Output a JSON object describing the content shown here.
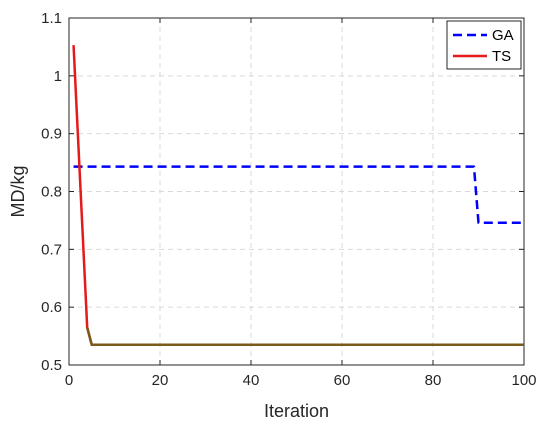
{
  "chart_data": {
    "type": "line",
    "xlabel": "Iteration",
    "ylabel": "MD/kg",
    "xlim": [
      0,
      100
    ],
    "ylim": [
      0.5,
      1.1
    ],
    "xticks": [
      0,
      20,
      40,
      60,
      80,
      100
    ],
    "yticks": [
      0.5,
      0.6,
      0.7,
      0.8,
      0.9,
      1,
      1.1
    ],
    "xtick_labels": [
      "0",
      "20",
      "40",
      "60",
      "80",
      "100"
    ],
    "ytick_labels": [
      "0.5",
      "0.6",
      "0.7",
      "0.8",
      "0.9",
      "1",
      "1.1"
    ],
    "grid": true,
    "legend_position": "top-right",
    "series": [
      {
        "name": "GA",
        "style": "dashed",
        "color": "#0000ff",
        "x": [
          1,
          89,
          90,
          100
        ],
        "y": [
          0.843,
          0.843,
          0.746,
          0.746
        ]
      },
      {
        "name": "TS",
        "style": "solid",
        "color": "#e41a1c",
        "overlap_color": "#7a5a1a",
        "x": [
          1,
          4,
          5,
          100
        ],
        "y": [
          1.053,
          0.565,
          0.535,
          0.535
        ]
      }
    ]
  }
}
